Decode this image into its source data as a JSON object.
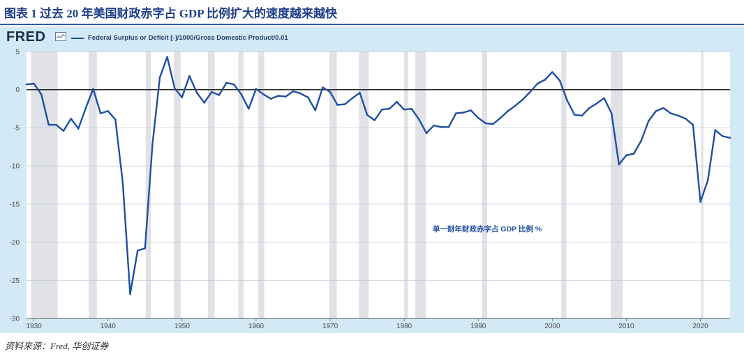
{
  "figure_title": "图表 1 过去 20 年美国财政赤字占 GDP 比例扩大的速度越来越快",
  "source_note": "资料来源：Fred, 华创证券",
  "fred_logo_text": "FRED",
  "chart_data": {
    "type": "line",
    "title": "",
    "xlabel": "",
    "ylabel": "",
    "xlim": [
      1929,
      2024
    ],
    "ylim": [
      -30,
      5
    ],
    "x_ticks": [
      1930,
      1940,
      1950,
      1960,
      1970,
      1980,
      1990,
      2000,
      2010,
      2020
    ],
    "y_ticks": [
      5,
      0,
      -5,
      -10,
      -15,
      -20,
      -25,
      -30
    ],
    "grid": true,
    "legend_placement": "top-left",
    "annotation": "单一财年财政赤字占 GDP 比例 %",
    "recessions": [
      [
        1929.6,
        1933.2
      ],
      [
        1937.4,
        1938.5
      ],
      [
        1945.1,
        1945.8
      ],
      [
        1948.9,
        1949.8
      ],
      [
        1953.5,
        1954.4
      ],
      [
        1957.6,
        1958.3
      ],
      [
        1960.3,
        1961.1
      ],
      [
        1969.9,
        1970.9
      ],
      [
        1973.9,
        1975.2
      ],
      [
        1980.0,
        1980.5
      ],
      [
        1981.5,
        1982.9
      ],
      [
        1990.5,
        1991.2
      ],
      [
        2001.2,
        2001.9
      ],
      [
        2007.9,
        2009.5
      ],
      [
        2020.1,
        2020.4
      ]
    ],
    "series": [
      {
        "name": "Federal Surplus or Deficit [-]/1000/Gross Domestic Product/0.01",
        "color": "#1f50a0",
        "x": [
          1929,
          1930,
          1931,
          1932,
          1933,
          1934,
          1935,
          1936,
          1937,
          1938,
          1939,
          1940,
          1941,
          1942,
          1943,
          1944,
          1945,
          1946,
          1947,
          1948,
          1949,
          1950,
          1951,
          1952,
          1953,
          1954,
          1955,
          1956,
          1957,
          1958,
          1959,
          1960,
          1961,
          1962,
          1963,
          1964,
          1965,
          1966,
          1967,
          1968,
          1969,
          1970,
          1971,
          1972,
          1973,
          1974,
          1975,
          1976,
          1977,
          1978,
          1979,
          1980,
          1981,
          1982,
          1983,
          1984,
          1985,
          1986,
          1987,
          1988,
          1989,
          1990,
          1991,
          1992,
          1993,
          1994,
          1995,
          1996,
          1997,
          1998,
          1999,
          2000,
          2001,
          2002,
          2003,
          2004,
          2005,
          2006,
          2007,
          2008,
          2009,
          2010,
          2011,
          2012,
          2013,
          2014,
          2015,
          2016,
          2017,
          2018,
          2019,
          2020,
          2021,
          2022,
          2023,
          2024
        ],
        "y": [
          0.7,
          0.8,
          -0.6,
          -4.6,
          -4.6,
          -5.4,
          -3.8,
          -5.1,
          -2.4,
          0.1,
          -3.1,
          -2.8,
          -3.9,
          -12.2,
          -26.8,
          -21.1,
          -20.8,
          -7.2,
          1.6,
          4.3,
          0.2,
          -1.0,
          1.8,
          -0.4,
          -1.7,
          -0.3,
          -0.7,
          0.9,
          0.7,
          -0.6,
          -2.5,
          0.1,
          -0.6,
          -1.2,
          -0.8,
          -0.9,
          -0.2,
          -0.5,
          -1.0,
          -2.7,
          0.3,
          -0.3,
          -2.0,
          -1.9,
          -1.1,
          -0.4,
          -3.3,
          -4.0,
          -2.6,
          -2.5,
          -1.6,
          -2.6,
          -2.5,
          -3.9,
          -5.7,
          -4.7,
          -4.9,
          -4.9,
          -3.1,
          -3.0,
          -2.7,
          -3.7,
          -4.4,
          -4.5,
          -3.7,
          -2.8,
          -2.1,
          -1.3,
          -0.3,
          0.8,
          1.3,
          2.3,
          1.2,
          -1.4,
          -3.3,
          -3.4,
          -2.4,
          -1.8,
          -1.1,
          -3.1,
          -9.8,
          -8.6,
          -8.4,
          -6.7,
          -4.1,
          -2.8,
          -2.4,
          -3.1,
          -3.4,
          -3.8,
          -4.6,
          -14.7,
          -11.9,
          -5.3,
          -6.1,
          -6.3
        ]
      }
    ]
  },
  "colors": {
    "panel": "#d3e9f5",
    "plot_bg": "#ffffff",
    "recession": "#e1e2e7",
    "line": "#1f50a0",
    "zero_line": "#000000",
    "grid": "#b9c6d2",
    "annotation": "#1f50a0",
    "title": "#1f3f8a"
  }
}
